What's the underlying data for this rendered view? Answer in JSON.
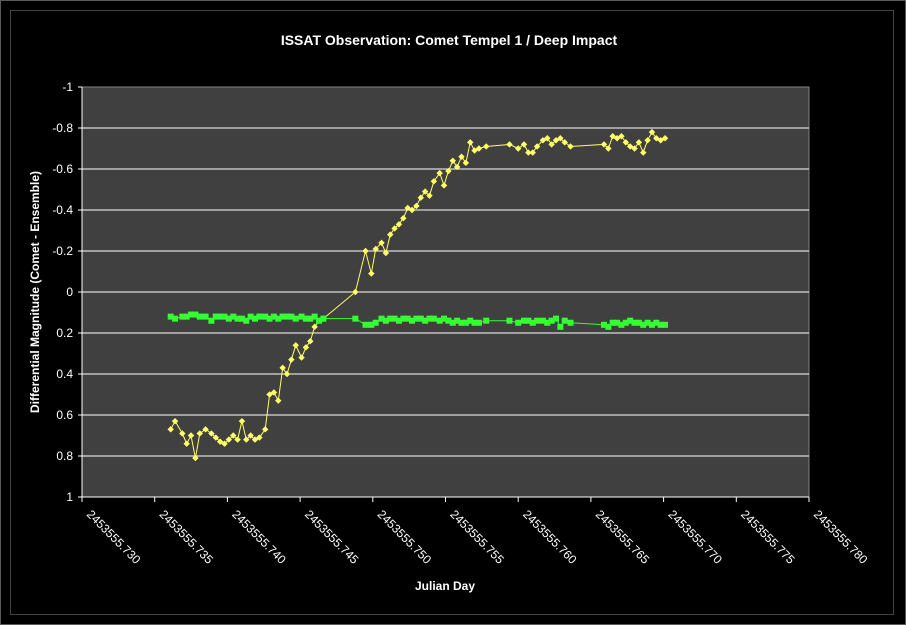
{
  "chart_data": {
    "type": "scatter",
    "title": "ISSAT Observation: Comet Tempel 1 / Deep Impact",
    "xlabel": "Julian Day",
    "ylabel": "Differential Magnitude (Comet - Ensemble)",
    "xlim": [
      2453555.73,
      2453555.78
    ],
    "ylim": [
      1,
      -1
    ],
    "y_reversed": true,
    "x_ticks": [
      "2453555.730",
      "2453555.735",
      "2453555.740",
      "2453555.745",
      "2453555.750",
      "2453555.755",
      "2453555.760",
      "2453555.765",
      "2453555.770",
      "2453555.775",
      "2453555.780"
    ],
    "y_ticks": [
      "-1",
      "-0.8",
      "-0.6",
      "-0.4",
      "-0.2",
      "0",
      "0.2",
      "0.4",
      "0.6",
      "0.8",
      "1"
    ],
    "grid": "horizontal",
    "legend": "none",
    "colors": {
      "background": "#000000",
      "plot_area": "#404040",
      "comet": "#FFFF66",
      "check": "#33FF33",
      "text": "#FFFFFF"
    },
    "series": [
      {
        "marker": "diamond",
        "color": "#FFFF66",
        "connected": true,
        "x": [
          2453555.7361,
          2453555.7364,
          2453555.7369,
          2453555.7372,
          2453555.7375,
          2453555.7378,
          2453555.7381,
          2453555.7385,
          2453555.7389,
          2453555.7392,
          2453555.7395,
          2453555.7398,
          2453555.7401,
          2453555.7404,
          2453555.7407,
          2453555.741,
          2453555.7413,
          2453555.7416,
          2453555.7419,
          2453555.7422,
          2453555.7426,
          2453555.7429,
          2453555.7432,
          2453555.7435,
          2453555.7438,
          2453555.7441,
          2453555.7444,
          2453555.7447,
          2453555.7451,
          2453555.7454,
          2453555.7457,
          2453555.746,
          2453555.7463,
          2453555.7466,
          2453555.7488,
          2453555.7495,
          2453555.7499,
          2453555.7502,
          2453555.7506,
          2453555.7509,
          2453555.7512,
          2453555.7515,
          2453555.7518,
          2453555.7521,
          2453555.7524,
          2453555.7527,
          2453555.753,
          2453555.7533,
          2453555.7536,
          2453555.7539,
          2453555.7542,
          2453555.7546,
          2453555.7549,
          2453555.7552,
          2453555.7555,
          2453555.7558,
          2453555.7561,
          2453555.7564,
          2453555.7567,
          2453555.757,
          2453555.7573,
          2453555.7578,
          2453555.7594,
          2453555.76,
          2453555.7604,
          2453555.7607,
          2453555.761,
          2453555.7613,
          2453555.7617,
          2453555.762,
          2453555.7623,
          2453555.7626,
          2453555.7629,
          2453555.7632,
          2453555.7636,
          2453555.7659,
          2453555.7662,
          2453555.7665,
          2453555.7668,
          2453555.7671,
          2453555.7674,
          2453555.7677,
          2453555.768,
          2453555.7683,
          2453555.7686,
          2453555.7689,
          2453555.7692,
          2453555.7695,
          2453555.7698,
          2453555.7701
        ],
        "y": [
          0.67,
          0.63,
          0.69,
          0.74,
          0.7,
          0.81,
          0.69,
          0.67,
          0.69,
          0.71,
          0.73,
          0.74,
          0.72,
          0.7,
          0.72,
          0.63,
          0.72,
          0.7,
          0.72,
          0.71,
          0.67,
          0.5,
          0.49,
          0.53,
          0.37,
          0.4,
          0.33,
          0.26,
          0.32,
          0.27,
          0.24,
          0.17,
          0.14,
          0.13,
          0.0,
          -0.2,
          -0.09,
          -0.21,
          -0.24,
          -0.19,
          -0.28,
          -0.31,
          -0.33,
          -0.36,
          -0.41,
          -0.4,
          -0.42,
          -0.46,
          -0.49,
          -0.47,
          -0.54,
          -0.58,
          -0.52,
          -0.59,
          -0.64,
          -0.61,
          -0.66,
          -0.63,
          -0.73,
          -0.69,
          -0.7,
          -0.71,
          -0.72,
          -0.7,
          -0.72,
          -0.68,
          -0.68,
          -0.71,
          -0.74,
          -0.75,
          -0.72,
          -0.74,
          -0.75,
          -0.73,
          -0.71,
          -0.72,
          -0.7,
          -0.76,
          -0.75,
          -0.76,
          -0.73,
          -0.71,
          -0.7,
          -0.73,
          -0.68,
          -0.74,
          -0.78,
          -0.75,
          -0.74,
          -0.75
        ]
      },
      {
        "marker": "square",
        "color": "#33FF33",
        "connected": true,
        "x": [
          2453555.7361,
          2453555.7364,
          2453555.7369,
          2453555.7372,
          2453555.7375,
          2453555.7378,
          2453555.7381,
          2453555.7385,
          2453555.7389,
          2453555.7392,
          2453555.7395,
          2453555.7398,
          2453555.7401,
          2453555.7404,
          2453555.7407,
          2453555.741,
          2453555.7413,
          2453555.7416,
          2453555.7419,
          2453555.7422,
          2453555.7426,
          2453555.7429,
          2453555.7432,
          2453555.7435,
          2453555.7438,
          2453555.7441,
          2453555.7444,
          2453555.7447,
          2453555.7451,
          2453555.7454,
          2453555.7457,
          2453555.746,
          2453555.7463,
          2453555.7466,
          2453555.7488,
          2453555.7495,
          2453555.7499,
          2453555.7502,
          2453555.7506,
          2453555.7509,
          2453555.7512,
          2453555.7515,
          2453555.7518,
          2453555.7521,
          2453555.7524,
          2453555.7527,
          2453555.753,
          2453555.7533,
          2453555.7536,
          2453555.7539,
          2453555.7542,
          2453555.7546,
          2453555.7549,
          2453555.7552,
          2453555.7555,
          2453555.7558,
          2453555.7561,
          2453555.7564,
          2453555.7567,
          2453555.757,
          2453555.7573,
          2453555.7578,
          2453555.7594,
          2453555.76,
          2453555.7604,
          2453555.7607,
          2453555.761,
          2453555.7613,
          2453555.7617,
          2453555.762,
          2453555.7623,
          2453555.7626,
          2453555.7629,
          2453555.7632,
          2453555.7636,
          2453555.7659,
          2453555.7662,
          2453555.7665,
          2453555.7668,
          2453555.7671,
          2453555.7674,
          2453555.7677,
          2453555.768,
          2453555.7683,
          2453555.7686,
          2453555.7689,
          2453555.7692,
          2453555.7695,
          2453555.7698,
          2453555.7701
        ],
        "y": [
          0.12,
          0.13,
          0.12,
          0.12,
          0.11,
          0.11,
          0.12,
          0.12,
          0.14,
          0.12,
          0.12,
          0.12,
          0.13,
          0.12,
          0.13,
          0.13,
          0.14,
          0.12,
          0.13,
          0.12,
          0.12,
          0.13,
          0.12,
          0.13,
          0.12,
          0.12,
          0.12,
          0.13,
          0.12,
          0.13,
          0.13,
          0.12,
          0.14,
          0.13,
          0.13,
          0.16,
          0.16,
          0.15,
          0.13,
          0.14,
          0.13,
          0.13,
          0.14,
          0.13,
          0.13,
          0.14,
          0.13,
          0.13,
          0.14,
          0.13,
          0.13,
          0.14,
          0.13,
          0.14,
          0.15,
          0.14,
          0.15,
          0.15,
          0.14,
          0.15,
          0.15,
          0.14,
          0.14,
          0.15,
          0.14,
          0.14,
          0.15,
          0.14,
          0.14,
          0.15,
          0.14,
          0.13,
          0.17,
          0.14,
          0.15,
          0.16,
          0.17,
          0.15,
          0.15,
          0.16,
          0.15,
          0.14,
          0.15,
          0.15,
          0.16,
          0.15,
          0.16,
          0.15,
          0.16,
          0.16
        ]
      }
    ]
  }
}
